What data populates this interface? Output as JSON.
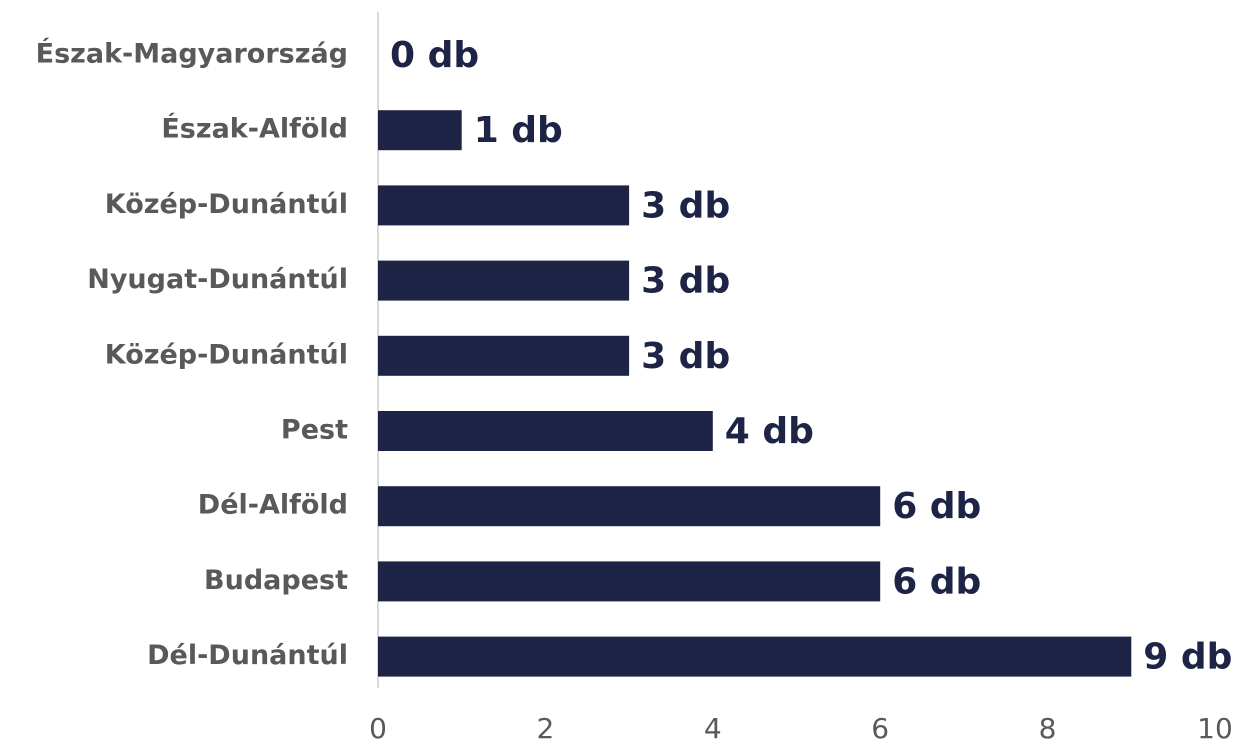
{
  "chart_data": {
    "type": "bar",
    "orientation": "horizontal",
    "categories": [
      "Észak-Magyarország",
      "Észak-Alföld",
      "Közép-Dunántúl",
      "Nyugat-Dunántúl",
      "Közép-Dunántúl",
      "Pest",
      "Dél-Alföld",
      "Budapest",
      "Dél-Dunántúl"
    ],
    "values": [
      0,
      1,
      3,
      3,
      3,
      4,
      6,
      6,
      9
    ],
    "value_labels": [
      "0 db",
      "1 db",
      "3 db",
      "3 db",
      "3 db",
      "4 db",
      "6 db",
      "6 db",
      "9 db"
    ],
    "color": "#1e2446",
    "xlim": [
      0,
      10
    ],
    "xticks": [
      0,
      2,
      4,
      6,
      8,
      10
    ],
    "grid": false
  }
}
